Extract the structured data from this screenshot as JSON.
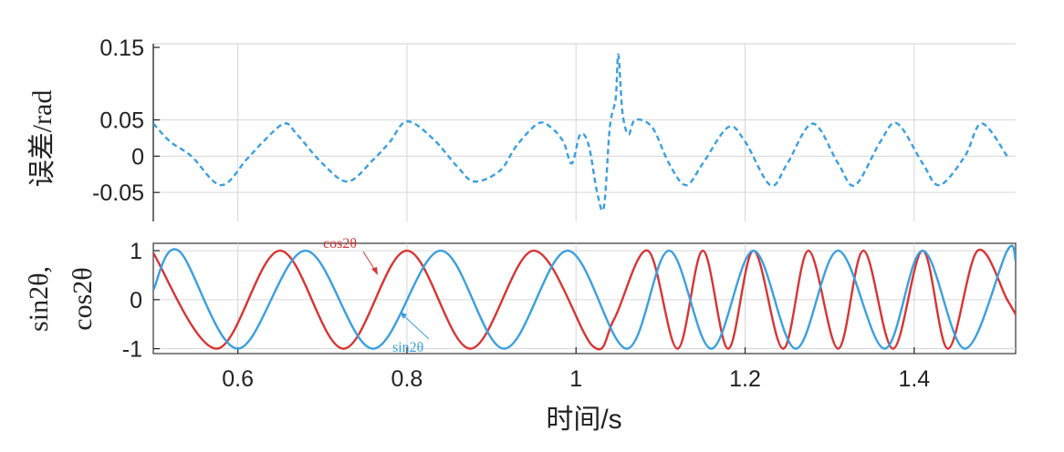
{
  "chart_data": [
    {
      "type": "line",
      "ylabel": "误差/rad",
      "xlim": [
        0.5,
        1.52
      ],
      "ylim": [
        -0.09,
        0.155
      ],
      "yticks": [
        -0.05,
        0,
        0.05,
        0.15
      ],
      "ytick_labels": [
        "-0.05",
        "0",
        "0.05",
        "0.15"
      ],
      "grid": true,
      "series": [
        {
          "color": "#3a9fe0",
          "style": "dashed",
          "x": [
            0.5,
            0.52,
            0.545,
            0.58,
            0.61,
            0.63,
            0.655,
            0.67,
            0.7,
            0.73,
            0.76,
            0.78,
            0.8,
            0.83,
            0.86,
            0.88,
            0.91,
            0.93,
            0.955,
            0.97,
            0.985,
            0.995,
            1.005,
            1.015,
            1.025,
            1.033,
            1.04,
            1.047,
            1.05,
            1.055,
            1.062,
            1.07,
            1.09,
            1.11,
            1.13,
            1.15,
            1.18,
            1.2,
            1.23,
            1.25,
            1.28,
            1.31,
            1.33,
            1.36,
            1.38,
            1.41,
            1.43,
            1.46,
            1.48,
            1.51
          ],
          "y": [
            0.045,
            0.02,
            0.0,
            -0.04,
            -0.005,
            0.02,
            0.045,
            0.03,
            -0.01,
            -0.035,
            -0.005,
            0.02,
            0.048,
            0.025,
            -0.015,
            -0.035,
            -0.02,
            0.015,
            0.045,
            0.04,
            0.02,
            -0.01,
            0.03,
            0.015,
            -0.05,
            -0.07,
            0.04,
            0.08,
            0.14,
            0.06,
            0.03,
            0.05,
            0.04,
            -0.01,
            -0.04,
            -0.01,
            0.04,
            0.02,
            -0.04,
            -0.01,
            0.045,
            -0.01,
            -0.04,
            0.02,
            0.045,
            -0.01,
            -0.04,
            0.0,
            0.045,
            0.0
          ]
        }
      ]
    },
    {
      "type": "line",
      "ylabel": "sin2θ,",
      "ylabel2": "cos2θ",
      "xlabel": "时间/s",
      "xlim": [
        0.5,
        1.52
      ],
      "ylim": [
        -1.1,
        1.15
      ],
      "xticks": [
        0.6,
        0.8,
        1,
        1.2,
        1.4
      ],
      "xtick_labels": [
        "0.6",
        "0.8",
        "1",
        "1.2",
        "1.4"
      ],
      "yticks": [
        -1,
        0,
        1
      ],
      "ytick_labels": [
        "-1",
        "0",
        "1"
      ],
      "grid": true,
      "series": [
        {
          "name": "cos2θ",
          "color": "#d83434",
          "x": [
            0.5,
            0.575,
            0.65,
            0.725,
            0.8,
            0.875,
            0.95,
            1.02,
            1.045,
            1.085,
            1.12,
            1.15,
            1.18,
            1.21,
            1.245,
            1.275,
            1.31,
            1.34,
            1.375,
            1.41,
            1.44,
            1.475,
            1.51,
            1.52
          ],
          "y": [
            0.95,
            -1.0,
            1.0,
            -1.0,
            1.0,
            -1.0,
            1.0,
            -0.95,
            -0.4,
            1.0,
            -1.0,
            1.0,
            -1.0,
            1.0,
            -1.0,
            1.0,
            -1.0,
            1.0,
            -1.0,
            1.0,
            -1.0,
            1.0,
            0.0,
            -0.3
          ]
        },
        {
          "name": "sin2θ",
          "color": "#3a9fe0",
          "x": [
            0.5,
            0.53,
            0.6,
            0.68,
            0.76,
            0.84,
            0.915,
            0.99,
            1.06,
            1.11,
            1.16,
            1.21,
            1.26,
            1.31,
            1.365,
            1.41,
            1.46,
            1.51,
            1.52
          ],
          "y": [
            0.2,
            1.0,
            -1.0,
            1.0,
            -1.0,
            1.0,
            -1.0,
            1.0,
            -1.0,
            1.0,
            -1.0,
            1.0,
            -1.0,
            1.0,
            -1.0,
            1.0,
            -1.0,
            1.0,
            0.8
          ]
        }
      ],
      "annotations": [
        {
          "text": "cos2θ",
          "color": "#d83434"
        },
        {
          "text": "sin2θ",
          "color": "#3a9fe0"
        }
      ]
    }
  ]
}
